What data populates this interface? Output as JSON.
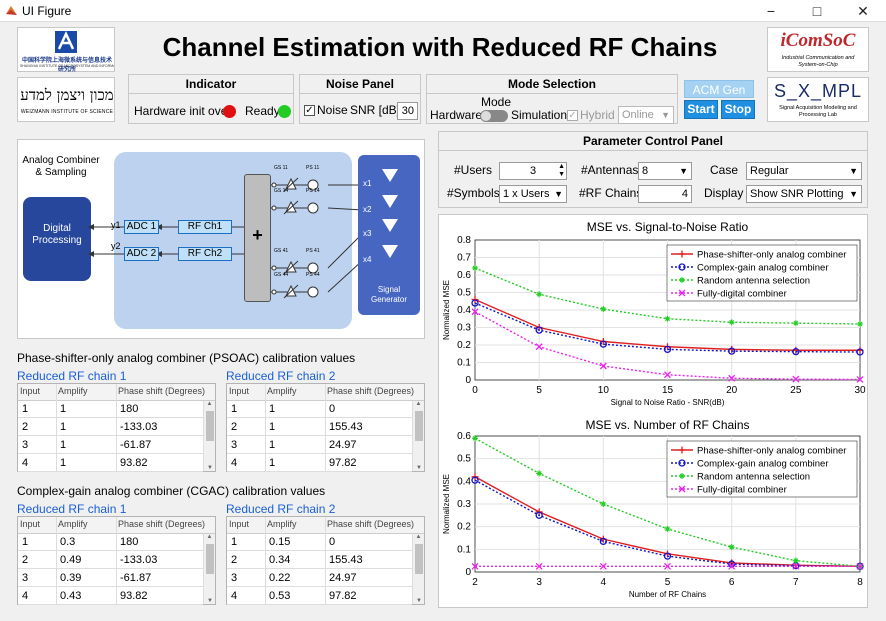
{
  "window": {
    "title": "UI Figure",
    "minimize": "−",
    "maximize": "□",
    "close": "✕"
  },
  "app_title": "Channel Estimation with Reduced RF Chains",
  "logos": {
    "cas_text": "中国科学院上海微系统与信息技术研究所",
    "cas_sub": "SHANGHAI INSTITUTE OF MICROSYSTEM AND INFORMATION TECHNOLOGY",
    "weizmann_heb": "מכון ויצמן למדע",
    "weizmann_en": "WEIZMANN INSTITUTE OF SCIENCE",
    "icomsoc_title": "iComSoC",
    "icomsoc_sub": "Industrial Communication and System-on-Chip",
    "sampl_title": "S_X_MPL",
    "sampl_sub": "Signal Acquisition Modeling and Processing Lab"
  },
  "indicator": {
    "title": "Indicator",
    "hw_label": "Hardware init over",
    "ready_label": "Ready",
    "hw_color": "#e01010",
    "ready_color": "#22cc22"
  },
  "noise": {
    "title": "Noise Panel",
    "checkbox_label": "Noise",
    "snr_label": "SNR [dB]",
    "snr_value": "30"
  },
  "mode": {
    "title": "Mode Selection",
    "mode_label": "Mode",
    "left": "Hardware",
    "right": "Simulation",
    "hybrid_label": "Hybrid",
    "online_value": "Online"
  },
  "acm": {
    "gen": "ACM Gen",
    "start": "Start",
    "stop": "Stop"
  },
  "diagram": {
    "title": "Analog Combiner & Sampling",
    "digital": "Digital Processing",
    "adc1": "ADC 1",
    "adc2": "ADC 2",
    "rf1": "RF Ch1",
    "rf2": "RF Ch2",
    "y1": "y1",
    "y2": "y2",
    "plus": "+",
    "gen": "Signal Generator",
    "gs11": "GS 11",
    "ps11": "PS 11",
    "gs14": "GS 14",
    "ps14": "PS 14",
    "gs41": "GS 41",
    "ps41": "PS 41",
    "gs44": "GS 44",
    "ps44": "PS 44",
    "x1": "x1",
    "x2": "x2",
    "x3": "x3",
    "x4": "x4"
  },
  "psoac": {
    "title": "Phase-shifter-only analog combiner (PSOAC) calibration values",
    "chain1": "Reduced RF chain 1",
    "chain2": "Reduced RF chain 2",
    "headers": [
      "Input",
      "Amplify",
      "Phase shift (Degrees)"
    ],
    "rows1": [
      [
        "1",
        "1",
        "180"
      ],
      [
        "2",
        "1",
        "-133.03"
      ],
      [
        "3",
        "1",
        "-61.87"
      ],
      [
        "4",
        "1",
        "93.82"
      ]
    ],
    "rows2": [
      [
        "1",
        "1",
        "0"
      ],
      [
        "2",
        "1",
        "155.43"
      ],
      [
        "3",
        "1",
        "24.97"
      ],
      [
        "4",
        "1",
        "97.82"
      ]
    ]
  },
  "cgac": {
    "title": "Complex-gain analog combiner (CGAC) calibration values",
    "chain1": "Reduced RF chain 1",
    "chain2": "Reduced RF chain 2",
    "headers": [
      "Input",
      "Amplify",
      "Phase shift (Degrees)"
    ],
    "rows1": [
      [
        "1",
        "0.3",
        "180"
      ],
      [
        "2",
        "0.49",
        "-133.03"
      ],
      [
        "3",
        "0.39",
        "-61.87"
      ],
      [
        "4",
        "0.43",
        "93.82"
      ]
    ],
    "rows2": [
      [
        "1",
        "0.15",
        "0"
      ],
      [
        "2",
        "0.34",
        "155.43"
      ],
      [
        "3",
        "0.22",
        "24.97"
      ],
      [
        "4",
        "0.53",
        "97.82"
      ]
    ]
  },
  "params": {
    "title": "Parameter Control Panel",
    "users_label": "#Users",
    "users_value": "3",
    "antennas_label": "#Antennas",
    "antennas_value": "8",
    "case_label": "Case",
    "case_value": "Regular",
    "symbols_label": "#Symbols",
    "symbols_value": "1 x Users",
    "rf_label": "#RF Chains",
    "rf_value": "4",
    "display_label": "Display",
    "display_value": "Show SNR Plotting"
  },
  "chart_data": [
    {
      "type": "line",
      "title": "MSE vs. Signal-to-Noise Ratio",
      "xlabel": "Signal to Noise Ratio - SNR(dB)",
      "ylabel": "Normalized MSE",
      "x": [
        0,
        5,
        10,
        15,
        20,
        25,
        30
      ],
      "xlim": [
        0,
        30
      ],
      "ylim": [
        0,
        0.8
      ],
      "xticks": [
        "0",
        "5",
        "10",
        "15",
        "20",
        "25",
        "30"
      ],
      "yticks": [
        "0",
        "0.1",
        "0.2",
        "0.3",
        "0.4",
        "0.5",
        "0.6",
        "0.7",
        "0.8"
      ],
      "grid": true,
      "legend": "top-right",
      "series": [
        {
          "name": "Phase-shifter-only analog combiner",
          "color": "#e02020",
          "marker": "plus",
          "dash": "",
          "values": [
            0.46,
            0.3,
            0.22,
            0.19,
            0.175,
            0.17,
            0.17
          ]
        },
        {
          "name": "Complex-gain analog combiner",
          "color": "#1515c8",
          "marker": "circle",
          "dash": "2,2",
          "values": [
            0.44,
            0.285,
            0.205,
            0.175,
            0.165,
            0.162,
            0.16
          ]
        },
        {
          "name": "Random antenna selection",
          "color": "#22cc22",
          "marker": "star",
          "dash": "2,2",
          "values": [
            0.64,
            0.49,
            0.405,
            0.35,
            0.33,
            0.325,
            0.32
          ]
        },
        {
          "name": "Fully-digital combiner",
          "color": "#ee22ee",
          "marker": "x",
          "dash": "2,2",
          "values": [
            0.39,
            0.19,
            0.08,
            0.03,
            0.01,
            0.005,
            0.003
          ]
        }
      ]
    },
    {
      "type": "line",
      "title": "MSE vs. Number of RF Chains",
      "xlabel": "Number of RF Chains",
      "ylabel": "Normalized MSE",
      "x": [
        2,
        3,
        4,
        5,
        6,
        7,
        8
      ],
      "xlim": [
        2,
        8
      ],
      "ylim": [
        0,
        0.6
      ],
      "xticks": [
        "2",
        "3",
        "4",
        "5",
        "6",
        "7",
        "8"
      ],
      "yticks": [
        "0",
        "0.1",
        "0.2",
        "0.3",
        "0.4",
        "0.5",
        "0.6"
      ],
      "grid": true,
      "legend": "top-right",
      "series": [
        {
          "name": "Phase-shifter-only analog combiner",
          "color": "#e02020",
          "marker": "plus",
          "dash": "",
          "values": [
            0.42,
            0.265,
            0.145,
            0.08,
            0.04,
            0.03,
            0.025
          ]
        },
        {
          "name": "Complex-gain analog combiner",
          "color": "#1515c8",
          "marker": "circle",
          "dash": "2,2",
          "values": [
            0.405,
            0.25,
            0.135,
            0.07,
            0.035,
            0.028,
            0.025
          ]
        },
        {
          "name": "Random antenna selection",
          "color": "#22cc22",
          "marker": "star",
          "dash": "2,2",
          "values": [
            0.59,
            0.435,
            0.3,
            0.19,
            0.11,
            0.05,
            0.025
          ]
        },
        {
          "name": "Fully-digital combiner",
          "color": "#ee22ee",
          "marker": "x",
          "dash": "2,2",
          "values": [
            0.025,
            0.025,
            0.025,
            0.025,
            0.025,
            0.025,
            0.025
          ]
        }
      ]
    }
  ]
}
